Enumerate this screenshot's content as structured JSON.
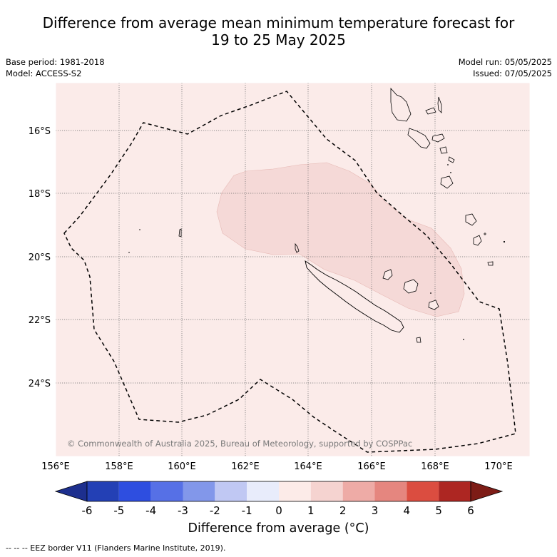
{
  "title_line1": "Difference from average mean minimum temperature forecast for",
  "title_line2": "19 to 25 May 2025",
  "base_period": "Base period: 1981-2018",
  "model": "Model: ACCESS-S2",
  "model_run": "Model run: 05/05/2025",
  "issued": "Issued: 07/05/2025",
  "copyright": "© Commonwealth of Australia 2025, Bureau of Meteorology, supported by COSPPac",
  "lon_labels": [
    "156°E",
    "158°E",
    "160°E",
    "162°E",
    "164°E",
    "166°E",
    "168°E",
    "170°E"
  ],
  "lat_labels": [
    "16°S",
    "18°S",
    "20°S",
    "22°S",
    "24°S"
  ],
  "colorbar": {
    "title": "Difference from average (°C)",
    "ticks": [
      "-6",
      "-5",
      "-4",
      "-3",
      "-2",
      "-1",
      "0",
      "1",
      "2",
      "3",
      "4",
      "5",
      "6"
    ],
    "colors": [
      "#1d2f8e",
      "#2340b5",
      "#2e4ee0",
      "#5670e6",
      "#8297ea",
      "#c0c8f3",
      "#e8ecfb",
      "#fcebe8",
      "#f5d3d0",
      "#eeaba6",
      "#e5867f",
      "#db4d40",
      "#ad2622",
      "#7d1c16"
    ]
  },
  "legend": {
    "background_color": "#fbebe9",
    "anomaly_region_color": "#f5d9d7"
  },
  "eez_note": "-- -- -- EEZ border V11 (Flanders Marine Institute, 2019)."
}
